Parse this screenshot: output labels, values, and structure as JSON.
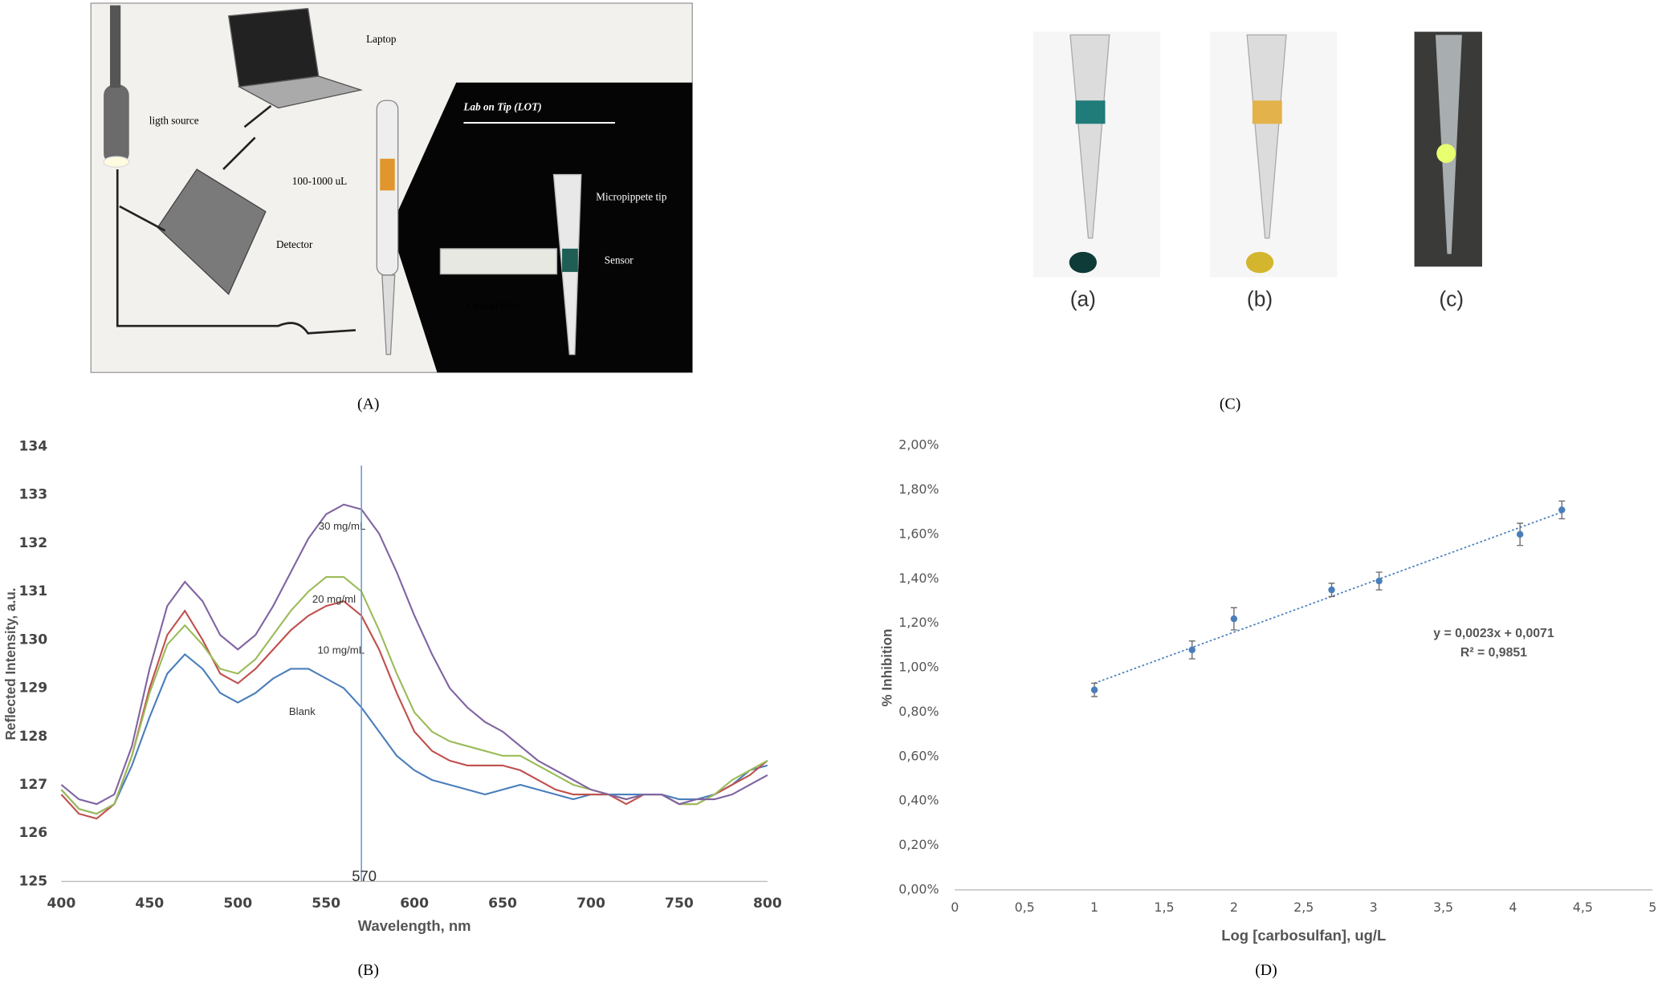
{
  "panel_a": {
    "caption": "(A)",
    "labels": {
      "light_source": "ligth source",
      "laptop": "Laptop",
      "volume": "100-1000 uL",
      "detector": "Detector",
      "title": "Lab on Tip (LOT)",
      "tip": "Micropippete tip",
      "sensor": "Sensor",
      "fibre": "Optical fibre"
    }
  },
  "panel_c": {
    "caption": "(C)",
    "labels": [
      "(a)",
      "(b)",
      "(c)"
    ]
  },
  "chart_data": [
    {
      "type": "line",
      "caption": "(B)",
      "x_label": "Wavelength, nm",
      "y_label": "Reflected Intensity, a.u.",
      "x": [
        400,
        410,
        420,
        430,
        440,
        450,
        460,
        470,
        480,
        490,
        500,
        510,
        520,
        530,
        540,
        550,
        560,
        570,
        580,
        590,
        600,
        610,
        620,
        630,
        640,
        650,
        660,
        670,
        680,
        690,
        700,
        710,
        720,
        730,
        740,
        750,
        760,
        770,
        780,
        790,
        800
      ],
      "series": [
        {
          "name": "Blank",
          "color": "#4a7ebb",
          "values": [
            126.9,
            126.5,
            126.4,
            126.6,
            127.4,
            128.4,
            129.3,
            129.7,
            129.4,
            128.9,
            128.7,
            128.9,
            129.2,
            129.4,
            129.4,
            129.2,
            129.0,
            128.6,
            128.1,
            127.6,
            127.3,
            127.1,
            127.0,
            126.9,
            126.8,
            126.9,
            127.0,
            126.9,
            126.8,
            126.7,
            126.8,
            126.8,
            126.8,
            126.8,
            126.8,
            126.7,
            126.7,
            126.8,
            127.0,
            127.3,
            127.4
          ]
        },
        {
          "name": "10 mg/mL",
          "color": "#c0504d",
          "values": [
            126.8,
            126.4,
            126.3,
            126.6,
            127.6,
            129.0,
            130.1,
            130.6,
            130.0,
            129.3,
            129.1,
            129.4,
            129.8,
            130.2,
            130.5,
            130.7,
            130.8,
            130.5,
            129.8,
            128.9,
            128.1,
            127.7,
            127.5,
            127.4,
            127.4,
            127.4,
            127.3,
            127.1,
            126.9,
            126.8,
            126.8,
            126.8,
            126.6,
            126.8,
            126.8,
            126.6,
            126.6,
            126.8,
            127.0,
            127.2,
            127.5
          ]
        },
        {
          "name": "20 mg/ml",
          "color": "#9bbb59",
          "values": [
            126.9,
            126.5,
            126.4,
            126.6,
            127.6,
            128.9,
            129.9,
            130.3,
            129.9,
            129.4,
            129.3,
            129.6,
            130.1,
            130.6,
            131.0,
            131.3,
            131.3,
            131.0,
            130.2,
            129.3,
            128.5,
            128.1,
            127.9,
            127.8,
            127.7,
            127.6,
            127.6,
            127.4,
            127.2,
            127.0,
            126.9,
            126.8,
            126.7,
            126.8,
            126.8,
            126.6,
            126.6,
            126.8,
            127.1,
            127.3,
            127.5
          ]
        },
        {
          "name": "30 mg/mL",
          "color": "#8064a2",
          "values": [
            127.0,
            126.7,
            126.6,
            126.8,
            127.8,
            129.4,
            130.7,
            131.2,
            130.8,
            130.1,
            129.8,
            130.1,
            130.7,
            131.4,
            132.1,
            132.6,
            132.8,
            132.7,
            132.2,
            131.4,
            130.5,
            129.7,
            129.0,
            128.6,
            128.3,
            128.1,
            127.8,
            127.5,
            127.3,
            127.1,
            126.9,
            126.8,
            126.7,
            126.8,
            126.8,
            126.6,
            126.7,
            126.7,
            126.8,
            127.0,
            127.2
          ]
        }
      ],
      "vline": 570,
      "vline_color": "#6a9ad0",
      "xlim": [
        400,
        800
      ],
      "xticks": [
        400,
        450,
        500,
        550,
        600,
        650,
        700,
        750,
        800
      ],
      "ylim": [
        125,
        134
      ],
      "yticks": [
        125,
        126,
        127,
        128,
        129,
        130,
        131,
        132,
        133,
        134
      ],
      "grid": false
    },
    {
      "type": "scatter",
      "caption": "(D)",
      "x_label": "Log [carbosulfan],  ug/L",
      "y_label": "% Inhibition",
      "x": [
        1,
        1.7,
        2,
        2.7,
        3.04,
        4.05,
        4.35
      ],
      "values": [
        0.9,
        1.08,
        1.22,
        1.35,
        1.39,
        1.6,
        1.71
      ],
      "errors": [
        0.03,
        0.04,
        0.05,
        0.03,
        0.04,
        0.05,
        0.04
      ],
      "color": "#4a7ebb",
      "trendline": {
        "x": [
          1,
          4.35
        ],
        "values": [
          0.93,
          1.7
        ]
      },
      "equation": "y = 0,0023x + 0,0071",
      "r_squared": "R² = 0,9851",
      "xlim": [
        0,
        5
      ],
      "xticks": [
        0,
        {
          "value": 0.5,
          "label": "0,5"
        },
        1,
        {
          "value": 1.5,
          "label": "1,5"
        },
        2,
        {
          "value": 2.5,
          "label": "2,5"
        },
        3,
        {
          "value": 3.5,
          "label": "3,5"
        },
        4,
        {
          "value": 4.5,
          "label": "4,5"
        },
        5
      ],
      "ylim": [
        0,
        2
      ],
      "yticks": [
        {
          "value": 0,
          "label": "0,00%"
        },
        {
          "value": 0.2,
          "label": "0,20%"
        },
        {
          "value": 0.4,
          "label": "0,40%"
        },
        {
          "value": 0.6,
          "label": "0,60%"
        },
        {
          "value": 0.8,
          "label": "0,80%"
        },
        {
          "value": 1,
          "label": "1,00%"
        },
        {
          "value": 1.2,
          "label": "1,20%"
        },
        {
          "value": 1.4,
          "label": "1,40%"
        },
        {
          "value": 1.6,
          "label": "1,60%"
        },
        {
          "value": 1.8,
          "label": "1,80%"
        },
        {
          "value": 2,
          "label": "2,00%"
        }
      ],
      "grid": false
    }
  ]
}
